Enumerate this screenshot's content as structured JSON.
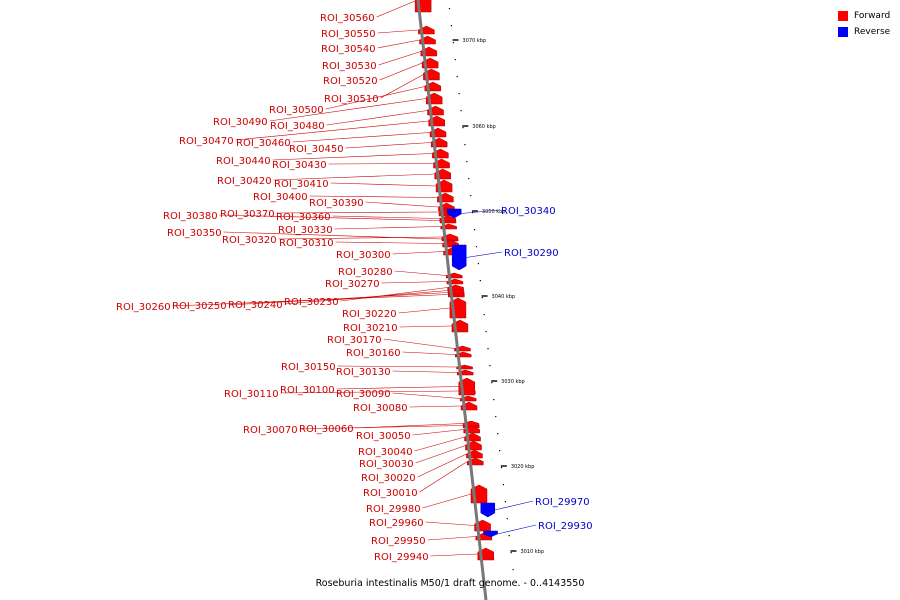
{
  "caption": "Roseburia intestinalis M50/1 draft genome. - 0..4143550",
  "legend": [
    {
      "label": "Forward",
      "color": "#ff0000"
    },
    {
      "label": "Reverse",
      "color": "#0000ff"
    }
  ],
  "colors": {
    "forward": "#ff0000",
    "reverse": "#0000ff",
    "label_forward": "#cc0000",
    "label_reverse": "#0000cc",
    "backbone": "#777777",
    "tick": "#000000"
  },
  "scale_ticks": [
    "3070 kbp",
    "3060 kbp",
    "3050 kbp",
    "3040 kbp",
    "3030 kbp",
    "3020 kbp",
    "3010 kbp"
  ],
  "features": [
    {
      "name": "ROI_30560",
      "strand": "forward"
    },
    {
      "name": "ROI_30550",
      "strand": "forward"
    },
    {
      "name": "ROI_30540",
      "strand": "forward"
    },
    {
      "name": "ROI_30530",
      "strand": "forward"
    },
    {
      "name": "ROI_30520",
      "strand": "forward"
    },
    {
      "name": "ROI_30510",
      "strand": "forward"
    },
    {
      "name": "ROI_30500",
      "strand": "forward"
    },
    {
      "name": "ROI_30490",
      "strand": "forward"
    },
    {
      "name": "ROI_30480",
      "strand": "forward"
    },
    {
      "name": "ROI_30470",
      "strand": "forward"
    },
    {
      "name": "ROI_30460",
      "strand": "forward"
    },
    {
      "name": "ROI_30450",
      "strand": "forward"
    },
    {
      "name": "ROI_30440",
      "strand": "forward"
    },
    {
      "name": "ROI_30430",
      "strand": "forward"
    },
    {
      "name": "ROI_30420",
      "strand": "forward"
    },
    {
      "name": "ROI_30410",
      "strand": "forward"
    },
    {
      "name": "ROI_30400",
      "strand": "forward"
    },
    {
      "name": "ROI_30390",
      "strand": "forward"
    },
    {
      "name": "ROI_30380",
      "strand": "forward"
    },
    {
      "name": "ROI_30370",
      "strand": "forward"
    },
    {
      "name": "ROI_30360",
      "strand": "forward"
    },
    {
      "name": "ROI_30350",
      "strand": "forward"
    },
    {
      "name": "ROI_30340",
      "strand": "reverse"
    },
    {
      "name": "ROI_30330",
      "strand": "forward"
    },
    {
      "name": "ROI_30320",
      "strand": "forward"
    },
    {
      "name": "ROI_30310",
      "strand": "forward"
    },
    {
      "name": "ROI_30300",
      "strand": "forward"
    },
    {
      "name": "ROI_30290",
      "strand": "reverse"
    },
    {
      "name": "ROI_30280",
      "strand": "forward"
    },
    {
      "name": "ROI_30270",
      "strand": "forward"
    },
    {
      "name": "ROI_30260",
      "strand": "forward"
    },
    {
      "name": "ROI_30250",
      "strand": "forward"
    },
    {
      "name": "ROI_30240",
      "strand": "forward"
    },
    {
      "name": "ROI_30230",
      "strand": "forward"
    },
    {
      "name": "ROI_30220",
      "strand": "forward"
    },
    {
      "name": "ROI_30210",
      "strand": "forward"
    },
    {
      "name": "ROI_30170",
      "strand": "forward"
    },
    {
      "name": "ROI_30160",
      "strand": "forward"
    },
    {
      "name": "ROI_30150",
      "strand": "forward"
    },
    {
      "name": "ROI_30130",
      "strand": "forward"
    },
    {
      "name": "ROI_30110",
      "strand": "forward"
    },
    {
      "name": "ROI_30100",
      "strand": "forward"
    },
    {
      "name": "ROI_30090",
      "strand": "forward"
    },
    {
      "name": "ROI_30080",
      "strand": "forward"
    },
    {
      "name": "ROI_30070",
      "strand": "forward"
    },
    {
      "name": "ROI_30060",
      "strand": "forward"
    },
    {
      "name": "ROI_30050",
      "strand": "forward"
    },
    {
      "name": "ROI_30040",
      "strand": "forward"
    },
    {
      "name": "ROI_30030",
      "strand": "forward"
    },
    {
      "name": "ROI_30020",
      "strand": "forward"
    },
    {
      "name": "ROI_30010",
      "strand": "forward"
    },
    {
      "name": "ROI_29980",
      "strand": "forward"
    },
    {
      "name": "ROI_29970",
      "strand": "reverse"
    },
    {
      "name": "ROI_29960",
      "strand": "forward"
    },
    {
      "name": "ROI_29950",
      "strand": "forward"
    },
    {
      "name": "ROI_29940",
      "strand": "forward"
    },
    {
      "name": "ROI_29930",
      "strand": "reverse"
    }
  ]
}
